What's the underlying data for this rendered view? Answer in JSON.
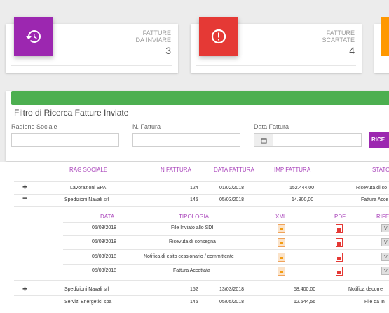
{
  "cards": [
    {
      "title_line1": "Fatture",
      "title_line2": "da Inviare",
      "value": "3",
      "icon": "history-icon",
      "color": "#9c27b0"
    },
    {
      "title_line1": "Fatture",
      "title_line2": "Scartate",
      "value": "4",
      "icon": "alert-circle-icon",
      "color": "#e53935"
    }
  ],
  "filter": {
    "title": "Filtro di Ricerca Fatture Inviate",
    "ragione_label": "Ragione Sociale",
    "nfattura_label": "N. Fattura",
    "data_label": "Data Fattura",
    "search_button": "RICE"
  },
  "table": {
    "headers": {
      "rag": "RAG SOCIALE",
      "num": "N FATTURA",
      "data": "DATA FATTURA",
      "imp": "IMP FATTURA",
      "stato": "STATO"
    },
    "rows": [
      {
        "toggle": "+",
        "rag": "Lavorazioni SPA",
        "num": "124",
        "data": "01/02/2018",
        "imp": "152.444,00",
        "stato": "Ricevuta di co"
      },
      {
        "toggle": "−",
        "rag": "Spedizioni Navali srl",
        "num": "145",
        "data": "05/03/2018",
        "imp": "14.800,00",
        "stato": "Fattura Acce"
      },
      {
        "toggle": "+",
        "rag": "Spedizioni Navali srl",
        "num": "152",
        "data": "13/03/2018",
        "imp": "58.400,00",
        "stato": "Notifica decorre"
      },
      {
        "toggle": "",
        "rag": "Servizi Energetici spa",
        "num": "145",
        "data": "05/05/2018",
        "imp": "12.544,56",
        "stato": "File da In"
      }
    ],
    "sub_headers": {
      "data": "DATA",
      "tipologia": "TIPOLOGIA",
      "xml": "XML",
      "pdf": "PDF",
      "rif": "RIFE"
    },
    "sub_rows": [
      {
        "data": "05/03/2018",
        "tipologia": "File Inviato allo SDI",
        "v": "V"
      },
      {
        "data": "05/03/2018",
        "tipologia": "Ricevuta di consegna",
        "v": "V"
      },
      {
        "data": "05/03/2018",
        "tipologia": "Notifica di esito cessionario / committente",
        "v": "V"
      },
      {
        "data": "05/03/2018",
        "tipologia": "Fattura Accettata",
        "v": "V"
      }
    ]
  }
}
